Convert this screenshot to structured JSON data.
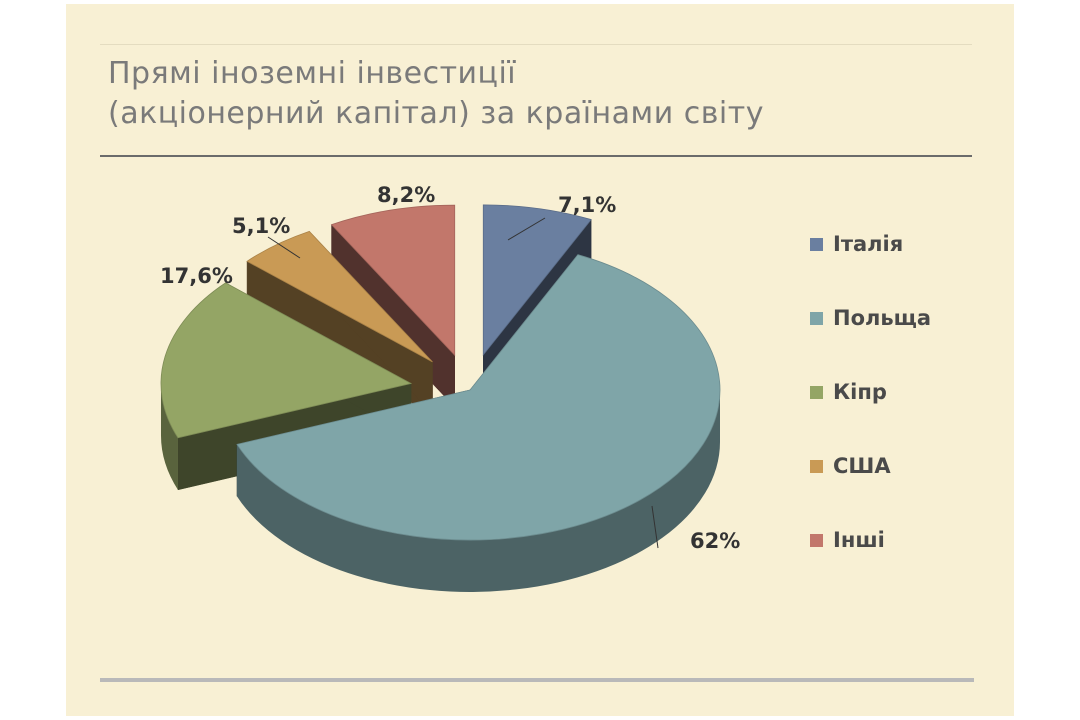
{
  "title": {
    "line1": "Прямі іноземні інвестиції",
    "line2": "(акціонерний капітал) за країнами світу"
  },
  "chart_data": {
    "type": "pie",
    "title": "Прямі іноземні інвестиції (акціонерний капітал) за країнами світу",
    "categories": [
      "Італія",
      "Польща",
      "Кіпр",
      "США",
      "Інші"
    ],
    "values": [
      7.1,
      62,
      17.6,
      5.1,
      8.2
    ],
    "labels": [
      "7,1%",
      "62%",
      "17,6%",
      "5,1%",
      "8,2%"
    ],
    "colors": [
      "#6a7fa0",
      "#7fa5a8",
      "#94a565",
      "#c99a55",
      "#c2776b"
    ],
    "legend_position": "right"
  }
}
